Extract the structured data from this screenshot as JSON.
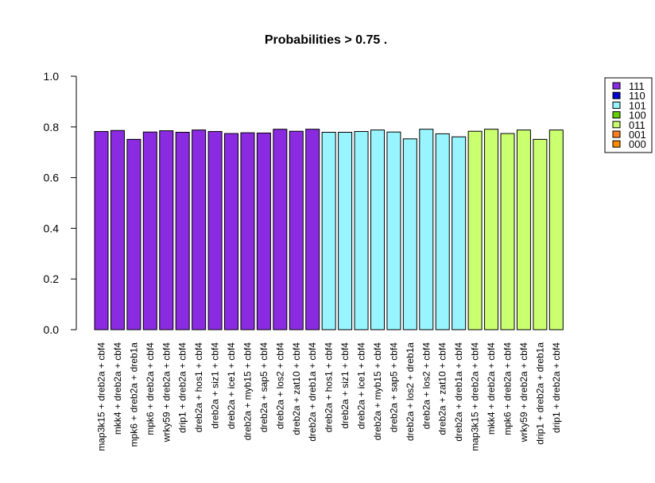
{
  "chart_data": {
    "type": "bar",
    "title": "Probabilities > 0.75 .",
    "xlabel": "",
    "ylabel": "",
    "ylim": [
      0,
      1
    ],
    "yticks": [
      "0.0",
      "0.2",
      "0.4",
      "0.6",
      "0.8",
      "1.0"
    ],
    "grid": false,
    "legend_position": "top-right",
    "legend": [
      {
        "label": "111",
        "color": "#8a2be2"
      },
      {
        "label": "110",
        "color": "#0000cd"
      },
      {
        "label": "101",
        "color": "#98f5ff"
      },
      {
        "label": "100",
        "color": "#66cd00"
      },
      {
        "label": "011",
        "color": "#caff70"
      },
      {
        "label": "001",
        "color": "#ff7f24"
      },
      {
        "label": "000",
        "color": "#ff8c00"
      }
    ],
    "categories": [
      "map3k15 + dreb2a + cbf4",
      "mkk4 + dreb2a + cbf4",
      "mpk6 + dreb2a + dreb1a",
      "mpk6 + dreb2a + cbf4",
      "wrky59 + dreb2a + cbf4",
      "drip1 + dreb2a + cbf4",
      "dreb2a + hos1 + cbf4",
      "dreb2a + siz1 + cbf4",
      "dreb2a + ice1 + cbf4",
      "dreb2a + myb15 + cbf4",
      "dreb2a + sap5 + cbf4",
      "dreb2a + los2 + cbf4",
      "dreb2a + zat10 + cbf4",
      "dreb2a + dreb1a + cbf4",
      "dreb2a + hos1 + cbf4",
      "dreb2a + siz1 + cbf4",
      "dreb2a + ice1 + cbf4",
      "dreb2a + myb15 + cbf4",
      "dreb2a + sap5 + cbf4",
      "dreb2a + los2 + dreb1a",
      "dreb2a + los2 + cbf4",
      "dreb2a + zat10 + cbf4",
      "dreb2a + dreb1a + cbf4",
      "map3k15 + dreb2a + cbf4",
      "mkk4 + dreb2a + cbf4",
      "mpk6 + dreb2a + cbf4",
      "wrky59 + dreb2a + cbf4",
      "drip1 + dreb2a + dreb1a",
      "drip1 + dreb2a + cbf4"
    ],
    "values": [
      0.782,
      0.786,
      0.751,
      0.78,
      0.785,
      0.779,
      0.788,
      0.782,
      0.774,
      0.777,
      0.776,
      0.791,
      0.783,
      0.791,
      0.779,
      0.779,
      0.782,
      0.788,
      0.78,
      0.753,
      0.791,
      0.773,
      0.761,
      0.783,
      0.791,
      0.774,
      0.788,
      0.751,
      0.788
    ],
    "groups": [
      "111",
      "111",
      "111",
      "111",
      "111",
      "111",
      "111",
      "111",
      "111",
      "111",
      "111",
      "111",
      "111",
      "111",
      "101",
      "101",
      "101",
      "101",
      "101",
      "101",
      "101",
      "101",
      "101",
      "011",
      "011",
      "011",
      "011",
      "011",
      "011"
    ]
  }
}
